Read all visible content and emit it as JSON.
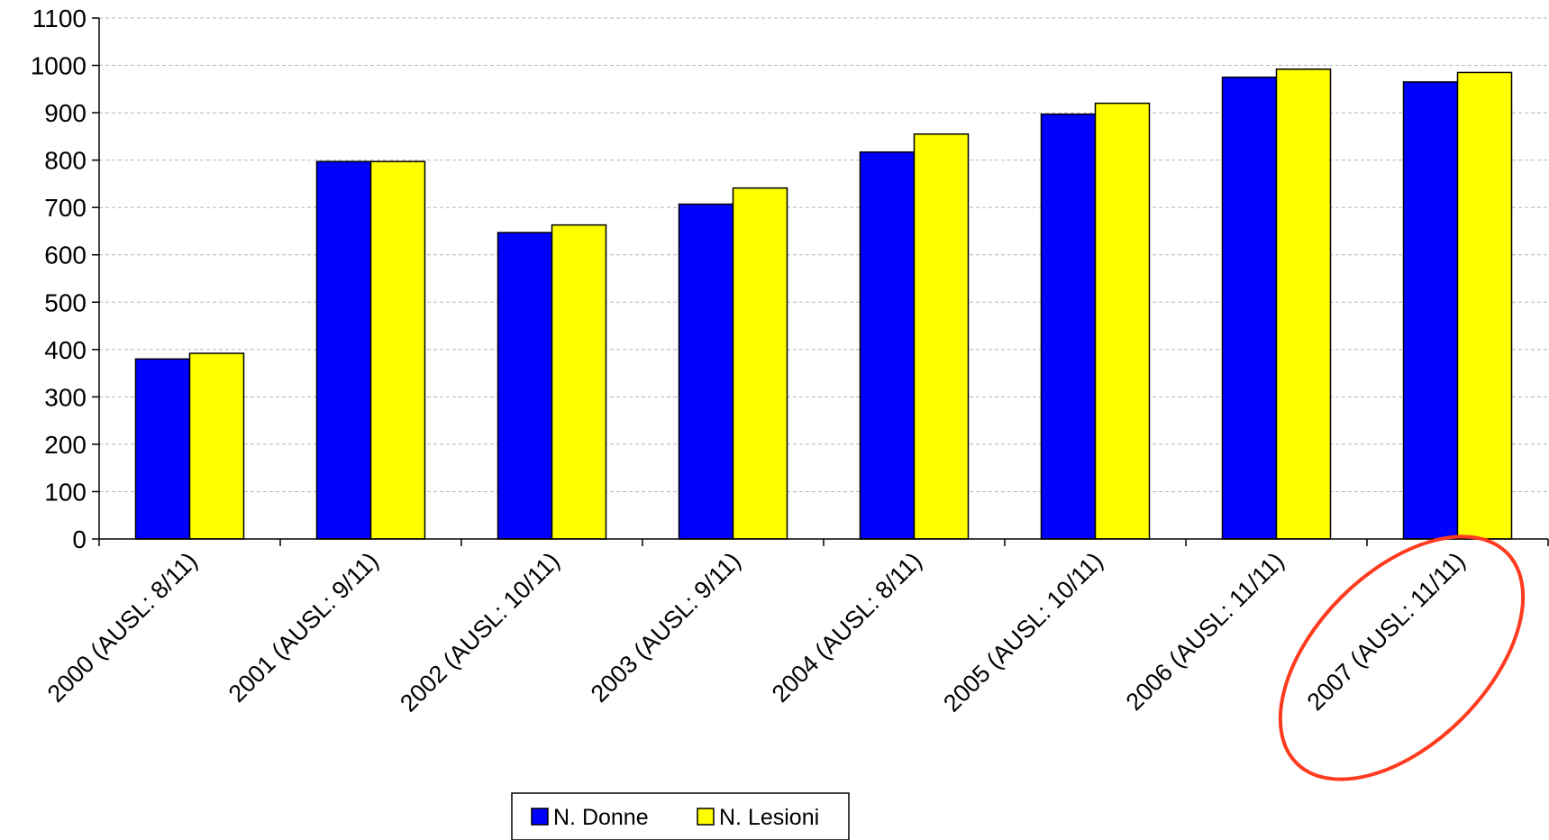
{
  "chart_data": {
    "type": "bar",
    "categories": [
      "2000 (AUSL: 8/11)",
      "2001 (AUSL: 9/11)",
      "2002 (AUSL: 10/11)",
      "2003 (AUSL: 9/11)",
      "2004 (AUSL: 8/11)",
      "2005 (AUSL: 10/11)",
      "2006 (AUSL: 11/11)",
      "2007 (AUSL: 11/11)"
    ],
    "series": [
      {
        "name": "N. Donne",
        "color": "#0000ff",
        "values": [
          380,
          797,
          647,
          707,
          817,
          897,
          975,
          965
        ]
      },
      {
        "name": "N. Lesioni",
        "color": "#ffff00",
        "values": [
          392,
          797,
          663,
          741,
          855,
          920,
          992,
          985
        ]
      }
    ],
    "title": "",
    "xlabel": "",
    "ylabel": "",
    "ylim": [
      0,
      1100
    ],
    "yticks": [
      0,
      100,
      200,
      300,
      400,
      500,
      600,
      700,
      800,
      900,
      1000,
      1100
    ],
    "grid": true,
    "legend_position": "bottom",
    "highlight": {
      "category": "2007 (AUSL: 11/11)",
      "shape": "ellipse",
      "color": "#ff3b1f"
    }
  }
}
